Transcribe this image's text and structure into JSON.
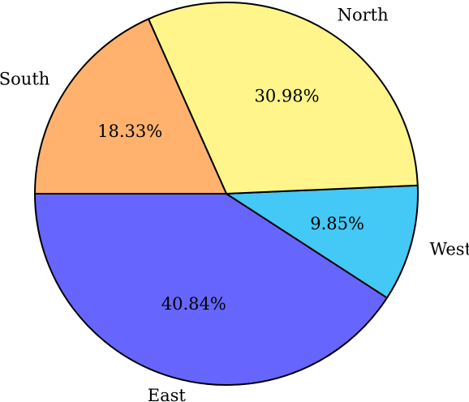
{
  "chart_data": {
    "type": "pie",
    "title": "",
    "start_angle_deg": 180,
    "direction": "counterclockwise",
    "slices": [
      {
        "label": "East",
        "value": 40.84,
        "value_label": "40.84%",
        "color": "#6666ff"
      },
      {
        "label": "West",
        "value": 9.85,
        "value_label": "9.85%",
        "color": "#44c8f5"
      },
      {
        "label": "North",
        "value": 30.98,
        "value_label": "30.98%",
        "color": "#fff58a"
      },
      {
        "label": "South",
        "value": 18.33,
        "value_label": "18.33%",
        "color": "#ffb26e"
      }
    ]
  }
}
